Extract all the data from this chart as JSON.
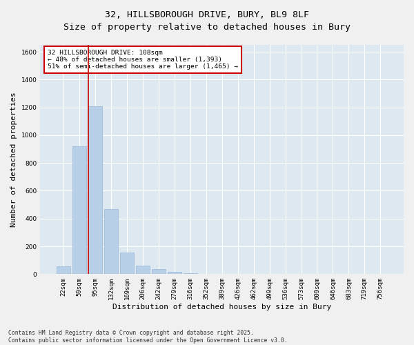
{
  "title_line1": "32, HILLSBOROUGH DRIVE, BURY, BL9 8LF",
  "title_line2": "Size of property relative to detached houses in Bury",
  "xlabel": "Distribution of detached houses by size in Bury",
  "ylabel": "Number of detached properties",
  "bar_color": "#b8cfe8",
  "bar_edge_color": "#9ab8d8",
  "background_color": "#dde8f0",
  "grid_color": "#ffffff",
  "categories": [
    "22sqm",
    "59sqm",
    "95sqm",
    "132sqm",
    "169sqm",
    "206sqm",
    "242sqm",
    "279sqm",
    "316sqm",
    "352sqm",
    "389sqm",
    "426sqm",
    "462sqm",
    "499sqm",
    "536sqm",
    "573sqm",
    "609sqm",
    "646sqm",
    "683sqm",
    "719sqm",
    "756sqm"
  ],
  "values": [
    55,
    920,
    1210,
    470,
    155,
    60,
    35,
    18,
    5,
    0,
    0,
    0,
    0,
    0,
    0,
    0,
    0,
    0,
    0,
    0,
    0
  ],
  "ylim": [
    0,
    1650
  ],
  "yticks": [
    0,
    200,
    400,
    600,
    800,
    1000,
    1200,
    1400,
    1600
  ],
  "property_line_color": "#cc0000",
  "property_line_bin": 2,
  "annotation_box_text": "32 HILLSBOROUGH DRIVE: 108sqm\n← 48% of detached houses are smaller (1,393)\n51% of semi-detached houses are larger (1,465) →",
  "annotation_box_color": "#cc0000",
  "footer_text": "Contains HM Land Registry data © Crown copyright and database right 2025.\nContains public sector information licensed under the Open Government Licence v3.0.",
  "title_fontsize": 9.5,
  "label_fontsize": 8,
  "tick_fontsize": 6.5,
  "annotation_fontsize": 6.8,
  "footer_fontsize": 5.8,
  "fig_bg_color": "#f0f0f0"
}
